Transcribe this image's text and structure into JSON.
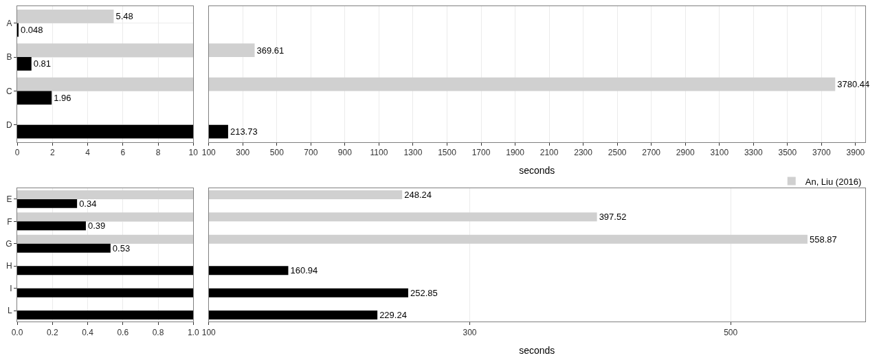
{
  "chart_data": [
    {
      "type": "bar",
      "orientation": "horizontal",
      "categories": [
        "A",
        "B",
        "C",
        "D"
      ],
      "xlim": [
        0,
        10
      ],
      "xticks": [
        0,
        2,
        4,
        6,
        8,
        10
      ],
      "grid": true,
      "tick_labels": "xy",
      "series": [
        {
          "color": "#d0d0d0",
          "values": [
            5.48,
            10,
            10,
            null
          ],
          "value_labels": [
            "5.48",
            null,
            null,
            null
          ]
        },
        {
          "color": "#000000",
          "values": [
            0.048,
            0.81,
            1.96,
            10
          ],
          "value_labels": [
            "0.048",
            "0.81",
            "1.96",
            null
          ]
        }
      ]
    },
    {
      "type": "bar",
      "orientation": "horizontal",
      "categories": [
        null,
        null,
        null,
        null
      ],
      "xlim": [
        100,
        3956
      ],
      "xticks": [
        100,
        300,
        500,
        700,
        900,
        1100,
        1300,
        1500,
        1700,
        1900,
        2100,
        2300,
        2500,
        2700,
        2900,
        3100,
        3300,
        3500,
        3700,
        3900
      ],
      "xlabel": "seconds",
      "grid": true,
      "tick_labels": "x",
      "legend": "bottom right",
      "series": [
        {
          "name": "An, Liu (2016)",
          "color": "#d0d0d0",
          "values": [
            null,
            369.61,
            3780.44,
            null
          ],
          "value_labels": [
            null,
            "369.61",
            "3780.44",
            null
          ]
        },
        {
          "color": "#000000",
          "values": [
            null,
            null,
            null,
            213.73
          ],
          "value_labels": [
            null,
            null,
            null,
            "213.73"
          ]
        }
      ]
    },
    {
      "type": "bar",
      "orientation": "horizontal",
      "categories": [
        "E",
        "F",
        "G",
        "H",
        "I",
        "L"
      ],
      "xlim": [
        0,
        1
      ],
      "xticks": [
        {
          "value": 0,
          "label": "0.0"
        },
        0.2,
        0.4,
        0.6,
        0.8,
        {
          "value": 1,
          "label": "1.0"
        }
      ],
      "grid": true,
      "tick_labels": "xy",
      "series": [
        {
          "color": "#d0d0d0",
          "values": [
            1,
            1,
            1,
            null,
            null,
            null
          ],
          "value_labels": [
            null,
            null,
            null,
            null,
            null,
            null
          ]
        },
        {
          "color": "#000000",
          "values": [
            0.34,
            0.39,
            0.53,
            1,
            1,
            1
          ],
          "value_labels": [
            "0.34",
            "0.39",
            "0.53",
            null,
            null,
            null
          ]
        }
      ]
    },
    {
      "type": "bar",
      "orientation": "horizontal",
      "categories": [
        null,
        null,
        null,
        null,
        null,
        null
      ],
      "xlim": [
        100,
        603
      ],
      "xticks": [
        100,
        300,
        500
      ],
      "xlabel": "seconds",
      "grid": true,
      "tick_labels": "x",
      "series": [
        {
          "color": "#d0d0d0",
          "values": [
            248.24,
            397.52,
            558.87,
            null,
            null,
            null
          ],
          "value_labels": [
            "248.24",
            "397.52",
            "558.87",
            null,
            null,
            null
          ]
        },
        {
          "color": "#000000",
          "values": [
            null,
            null,
            null,
            160.94,
            252.85,
            229.24
          ],
          "value_labels": [
            null,
            null,
            null,
            "160.94",
            "252.85",
            "229.24"
          ]
        }
      ]
    }
  ]
}
